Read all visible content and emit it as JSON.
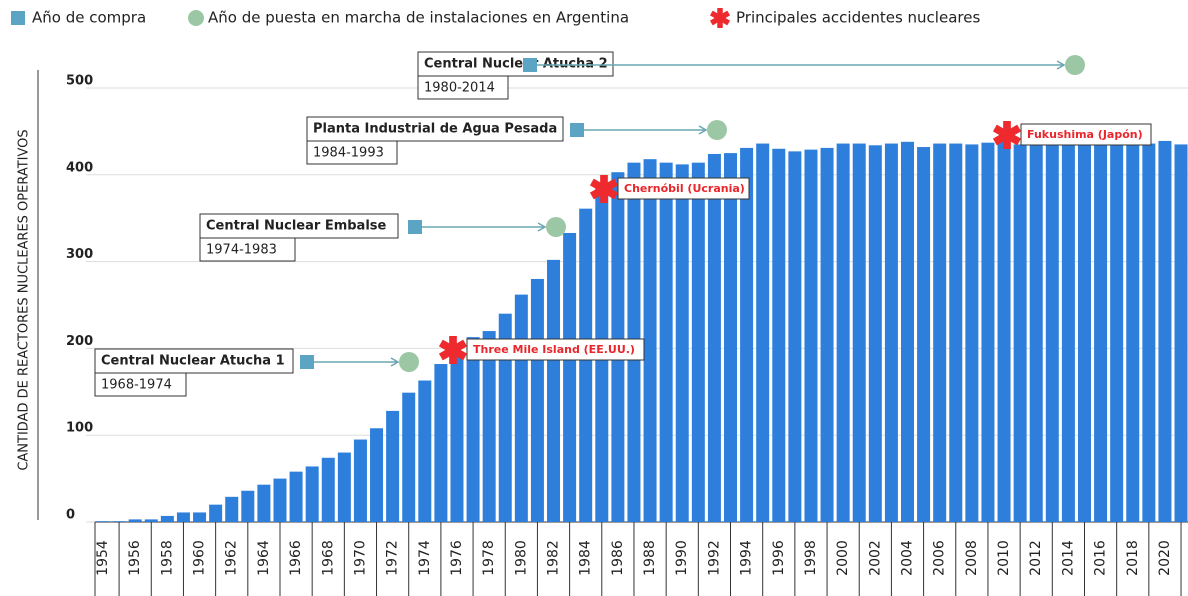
{
  "chart_data": {
    "type": "bar",
    "legend": [
      "Año de compra",
      "Año de puesta en marcha de instalaciones en Argentina",
      "Principales accidentes nucleares"
    ],
    "ylabel": "CANTIDAD DE REACTORES NUCLEARES OPERATIVOS",
    "color": "#2e7fdc",
    "categories": [
      "1954",
      null,
      "1956",
      null,
      "1958",
      null,
      "1960",
      null,
      "1962",
      null,
      "1964",
      null,
      "1966",
      null,
      "1968",
      null,
      "1970",
      null,
      "1972",
      null,
      "1974",
      null,
      "1976",
      null,
      "1978",
      null,
      "1980",
      null,
      "1982",
      null,
      "1984",
      null,
      "1986",
      null,
      "1988",
      null,
      "1990",
      null,
      "1992",
      null,
      "1994",
      null,
      "1996",
      null,
      "1998",
      null,
      "2000",
      null,
      "2002",
      null,
      "2004",
      null,
      "2006",
      null,
      "2008",
      null,
      "2010",
      null,
      "2012",
      null,
      "2014",
      null,
      "2016",
      null,
      "2018",
      null,
      "2020",
      null
    ],
    "values": [
      1,
      1,
      3,
      3,
      7,
      11,
      11,
      20,
      29,
      36,
      43,
      50,
      58,
      64,
      74,
      80,
      95,
      108,
      128,
      149,
      163,
      182,
      196,
      213,
      220,
      240,
      262,
      280,
      302,
      333,
      361,
      385,
      403,
      414,
      418,
      414,
      412,
      414,
      424,
      425,
      431,
      436,
      430,
      427,
      429,
      431,
      436,
      436,
      434,
      436,
      438,
      432,
      436,
      436,
      435,
      437,
      441,
      435,
      437,
      434,
      436,
      439,
      437,
      436,
      437,
      436,
      439,
      435
    ],
    "ylim": [
      0,
      500
    ],
    "yticks": [
      0,
      100,
      200,
      300,
      400,
      500
    ],
    "grid": true,
    "facilities": [
      {
        "name": "Central Nuclear Atucha 2",
        "period": "1980-2014"
      },
      {
        "name": "Planta Industrial de Agua Pesada",
        "period": "1984-1993"
      },
      {
        "name": "Central Nuclear Embalse",
        "period": "1974-1983"
      },
      {
        "name": "Central Nuclear Atucha 1",
        "period": "1968-1974"
      }
    ],
    "accidents": [
      "Three Mile Island (EE.UU.)",
      "Chernóbil (Ucrania)",
      "Fukushima (Japón)"
    ]
  }
}
